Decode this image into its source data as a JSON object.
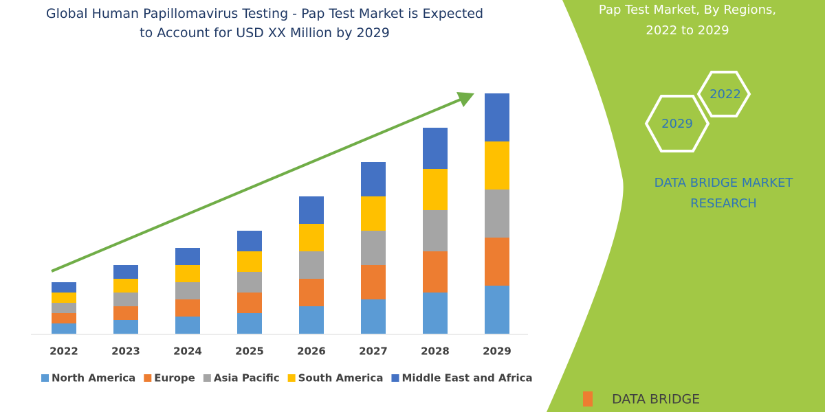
{
  "chart_data": {
    "type": "bar",
    "stacked": true,
    "title": "Global Human Papillomavirus Testing - Pap Test Market is Expected to Account for USD XX Million by 2029",
    "categories": [
      "2022",
      "2023",
      "2024",
      "2025",
      "2026",
      "2027",
      "2028",
      "2029"
    ],
    "series": [
      {
        "name": "North America",
        "color": "#5b9bd5",
        "values": [
          15,
          20,
          25,
          30,
          40,
          50,
          60,
          70
        ]
      },
      {
        "name": "Europe",
        "color": "#ed7d31",
        "values": [
          15,
          20,
          25,
          30,
          40,
          50,
          60,
          70
        ]
      },
      {
        "name": "Asia Pacific",
        "color": "#a5a5a5",
        "values": [
          15,
          20,
          25,
          30,
          40,
          50,
          60,
          70
        ]
      },
      {
        "name": "South America",
        "color": "#ffc000",
        "values": [
          15,
          20,
          25,
          30,
          40,
          50,
          60,
          70
        ]
      },
      {
        "name": "Middle East and Africa",
        "color": "#4472c4",
        "values": [
          15,
          20,
          25,
          30,
          40,
          50,
          60,
          70
        ]
      }
    ],
    "ylim": [
      0,
      350
    ]
  },
  "panel": {
    "title": "Pap Test Market, By Regions, 2022 to 2029",
    "hex_top": "2022",
    "hex_bottom": "2029",
    "brand": "DATA BRIDGE MARKET RESEARCH",
    "logo": "DATA BRIDGE"
  }
}
